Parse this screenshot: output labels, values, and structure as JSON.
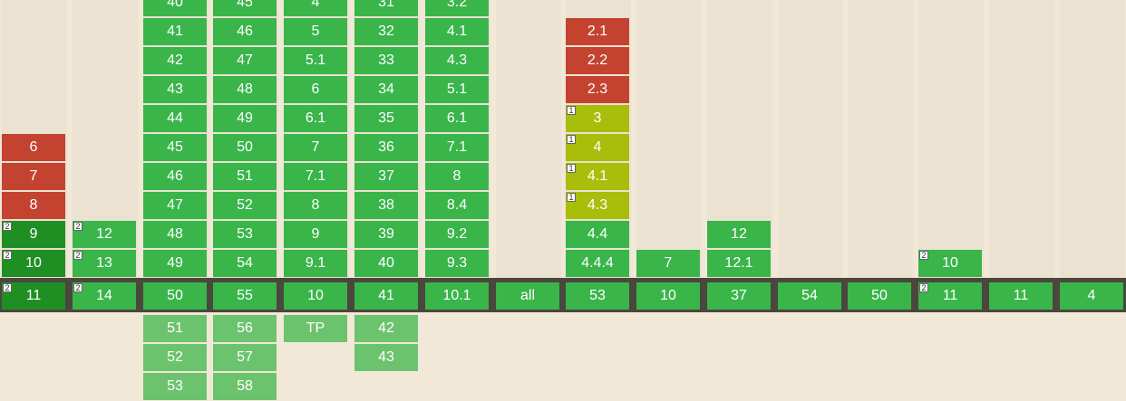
{
  "columns": [
    {
      "id": "ie",
      "past": [
        {
          "v": "6",
          "s": "n"
        },
        {
          "v": "7",
          "s": "n"
        },
        {
          "v": "8",
          "s": "n"
        },
        {
          "v": "9",
          "s": "ydark",
          "note": "2"
        },
        {
          "v": "10",
          "s": "ydark",
          "note": "2"
        }
      ],
      "current": {
        "v": "11",
        "s": "ydark",
        "note": "2"
      },
      "future": []
    },
    {
      "id": "edge",
      "past": [
        {
          "v": "12",
          "s": "y",
          "note": "2"
        },
        {
          "v": "13",
          "s": "y",
          "note": "2"
        }
      ],
      "current": {
        "v": "14",
        "s": "y",
        "note": "2"
      },
      "future": []
    },
    {
      "id": "firefox",
      "past": [
        {
          "v": "40",
          "s": "y"
        },
        {
          "v": "41",
          "s": "y"
        },
        {
          "v": "42",
          "s": "y"
        },
        {
          "v": "43",
          "s": "y"
        },
        {
          "v": "44",
          "s": "y"
        },
        {
          "v": "45",
          "s": "y"
        },
        {
          "v": "46",
          "s": "y"
        },
        {
          "v": "47",
          "s": "y"
        },
        {
          "v": "48",
          "s": "y"
        },
        {
          "v": "49",
          "s": "y"
        }
      ],
      "current": {
        "v": "50",
        "s": "y"
      },
      "future": [
        {
          "v": "51",
          "s": "f"
        },
        {
          "v": "52",
          "s": "f"
        },
        {
          "v": "53",
          "s": "f"
        }
      ]
    },
    {
      "id": "chrome",
      "past": [
        {
          "v": "45",
          "s": "y"
        },
        {
          "v": "46",
          "s": "y"
        },
        {
          "v": "47",
          "s": "y"
        },
        {
          "v": "48",
          "s": "y"
        },
        {
          "v": "49",
          "s": "y"
        },
        {
          "v": "50",
          "s": "y"
        },
        {
          "v": "51",
          "s": "y"
        },
        {
          "v": "52",
          "s": "y"
        },
        {
          "v": "53",
          "s": "y"
        },
        {
          "v": "54",
          "s": "y"
        }
      ],
      "current": {
        "v": "55",
        "s": "y"
      },
      "future": [
        {
          "v": "56",
          "s": "f"
        },
        {
          "v": "57",
          "s": "f"
        },
        {
          "v": "58",
          "s": "f"
        }
      ]
    },
    {
      "id": "safari",
      "past": [
        {
          "v": "4",
          "s": "y"
        },
        {
          "v": "5",
          "s": "y"
        },
        {
          "v": "5.1",
          "s": "y"
        },
        {
          "v": "6",
          "s": "y"
        },
        {
          "v": "6.1",
          "s": "y"
        },
        {
          "v": "7",
          "s": "y"
        },
        {
          "v": "7.1",
          "s": "y"
        },
        {
          "v": "8",
          "s": "y"
        },
        {
          "v": "9",
          "s": "y"
        },
        {
          "v": "9.1",
          "s": "y"
        }
      ],
      "current": {
        "v": "10",
        "s": "y"
      },
      "future": [
        {
          "v": "TP",
          "s": "f"
        }
      ]
    },
    {
      "id": "opera",
      "past": [
        {
          "v": "31",
          "s": "y"
        },
        {
          "v": "32",
          "s": "y"
        },
        {
          "v": "33",
          "s": "y"
        },
        {
          "v": "34",
          "s": "y"
        },
        {
          "v": "35",
          "s": "y"
        },
        {
          "v": "36",
          "s": "y"
        },
        {
          "v": "37",
          "s": "y"
        },
        {
          "v": "38",
          "s": "y"
        },
        {
          "v": "39",
          "s": "y"
        },
        {
          "v": "40",
          "s": "y"
        }
      ],
      "current": {
        "v": "41",
        "s": "y"
      },
      "future": [
        {
          "v": "42",
          "s": "f"
        },
        {
          "v": "43",
          "s": "f"
        }
      ]
    },
    {
      "id": "ios-safari",
      "past": [
        {
          "v": "3.2",
          "s": "y"
        },
        {
          "v": "4.1",
          "s": "y"
        },
        {
          "v": "4.3",
          "s": "y"
        },
        {
          "v": "5.1",
          "s": "y"
        },
        {
          "v": "6.1",
          "s": "y"
        },
        {
          "v": "7.1",
          "s": "y"
        },
        {
          "v": "8",
          "s": "y"
        },
        {
          "v": "8.4",
          "s": "y"
        },
        {
          "v": "9.2",
          "s": "y"
        },
        {
          "v": "9.3",
          "s": "y"
        }
      ],
      "current": {
        "v": "10.1",
        "s": "y"
      },
      "future": []
    },
    {
      "id": "opera-mini",
      "past": [],
      "current": {
        "v": "all",
        "s": "y"
      },
      "future": []
    },
    {
      "id": "android-browser",
      "past": [
        {
          "v": "2.1",
          "s": "n"
        },
        {
          "v": "2.2",
          "s": "n"
        },
        {
          "v": "2.3",
          "s": "n"
        },
        {
          "v": "3",
          "s": "a",
          "note": "1"
        },
        {
          "v": "4",
          "s": "a",
          "note": "1"
        },
        {
          "v": "4.1",
          "s": "a",
          "note": "1"
        },
        {
          "v": "4.3",
          "s": "a",
          "note": "1"
        },
        {
          "v": "4.4",
          "s": "y"
        },
        {
          "v": "4.4.4",
          "s": "y"
        }
      ],
      "current": {
        "v": "53",
        "s": "y"
      },
      "future": []
    },
    {
      "id": "blackberry",
      "past": [
        {
          "v": "7",
          "s": "y"
        }
      ],
      "current": {
        "v": "10",
        "s": "y"
      },
      "future": []
    },
    {
      "id": "opera-mobile",
      "past": [
        {
          "v": "12",
          "s": "y"
        },
        {
          "v": "12.1",
          "s": "y"
        }
      ],
      "current": {
        "v": "37",
        "s": "y"
      },
      "future": []
    },
    {
      "id": "chrome-android",
      "past": [],
      "current": {
        "v": "54",
        "s": "y"
      },
      "future": []
    },
    {
      "id": "firefox-android",
      "past": [],
      "current": {
        "v": "50",
        "s": "y"
      },
      "future": []
    },
    {
      "id": "ie-mobile",
      "past": [
        {
          "v": "10",
          "s": "y",
          "note": "2"
        }
      ],
      "current": {
        "v": "11",
        "s": "y",
        "note": "2"
      },
      "future": []
    },
    {
      "id": "uc-browser",
      "past": [],
      "current": {
        "v": "11",
        "s": "y"
      },
      "future": []
    },
    {
      "id": "samsung-internet",
      "past": [],
      "current": {
        "v": "4",
        "s": "y"
      },
      "future": []
    }
  ],
  "colors": {
    "supported": "#39b54a",
    "supported_dark": "#1f8f23",
    "unsupported": "#c44230",
    "partial": "#a8be0a",
    "future": "#6cc36d",
    "current_bar": "#4b463e",
    "page_bg": "#f1e8d7"
  }
}
